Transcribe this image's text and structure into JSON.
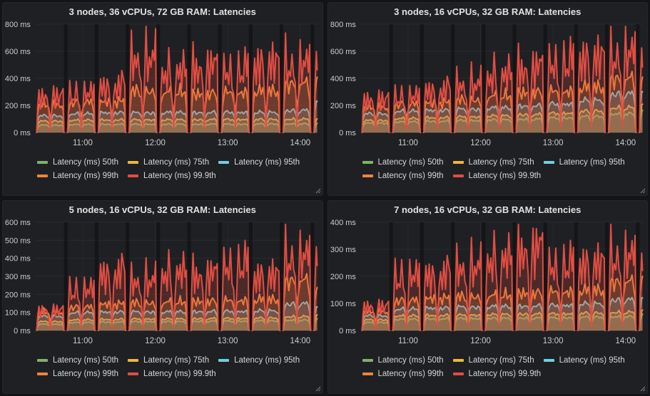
{
  "ui": {
    "panel_resize_icon": "corner-resize-grip",
    "accent_palette": [
      "#7EB26D",
      "#EAB839",
      "#6ED0E0",
      "#EF843C",
      "#E24D42"
    ],
    "panel_bg": "#1f2023",
    "page_bg": "#131417"
  },
  "burst_pattern": {
    "note": "workload runs in repeating bursts with short no-data gaps between them",
    "start": "10:22",
    "period_min": 25.5,
    "duration_min": 22.5,
    "sample_offsets": [
      0,
      0.03,
      0.08,
      0.14,
      0.2,
      0.26,
      0.32,
      0.38,
      0.44,
      0.5,
      0.56,
      0.62,
      0.68,
      0.74,
      0.8,
      0.86,
      0.92,
      0.97,
      1
    ],
    "shape_multipliers": {
      "low": [
        0,
        0.7,
        0.95,
        1,
        0.97,
        1,
        0.98,
        1,
        0.9,
        0.6,
        0.88,
        1,
        0.97,
        1,
        0.98,
        1,
        0.95,
        0.75,
        0
      ],
      "p99": [
        0,
        0.6,
        0.9,
        0.95,
        0.85,
        1,
        0.9,
        0.95,
        0.8,
        0.45,
        0.8,
        0.95,
        0.85,
        1,
        0.9,
        0.95,
        0.9,
        0.65,
        0
      ],
      "p999": [
        0,
        0.5,
        1,
        0.6,
        0.85,
        0.6,
        0.95,
        0.7,
        0.5,
        0.06,
        0.55,
        1,
        0.6,
        0.9,
        0.65,
        1,
        0.8,
        0.95,
        0
      ]
    }
  },
  "chart_data": [
    {
      "type": "area",
      "title": "3 nodes, 36 vCPUs, 72 GB RAM: Latencies",
      "ylabel_unit": "ms",
      "ylim": [
        0,
        800
      ],
      "ytick_step": 200,
      "x_range": [
        "10:21",
        "14:14"
      ],
      "xticks": [
        "11:00",
        "12:00",
        "13:00",
        "14:00"
      ],
      "series": [
        {
          "name": "Latency (ms) 50th",
          "percentile": "50th",
          "color": "#7EB26D",
          "burst_levels": [
            55,
            60,
            62,
            62,
            62,
            63,
            63,
            64,
            65,
            62
          ]
        },
        {
          "name": "Latency (ms) 75th",
          "percentile": "75th",
          "color": "#EAB839",
          "burst_levels": [
            85,
            92,
            95,
            95,
            95,
            97,
            98,
            98,
            100,
            96
          ]
        },
        {
          "name": "Latency (ms) 95th",
          "percentile": "95th",
          "color": "#6ED0E0",
          "burst_levels": [
            125,
            140,
            150,
            148,
            150,
            150,
            152,
            150,
            165,
            230
          ]
        },
        {
          "name": "Latency (ms) 99th",
          "percentile": "99th",
          "color": "#EF843C",
          "burst_levels": [
            220,
            240,
            250,
            330,
            320,
            310,
            320,
            330,
            390,
            430
          ]
        },
        {
          "name": "Latency (ms) 99.9th",
          "percentile": "99.9th",
          "color": "#E24D42",
          "burst_levels": [
            330,
            360,
            430,
            680,
            560,
            610,
            570,
            640,
            630,
            670
          ]
        }
      ]
    },
    {
      "type": "area",
      "title": "3 nodes, 16 vCPUs, 32 GB RAM: Latencies",
      "ylabel_unit": "ms",
      "ylim": [
        0,
        800
      ],
      "ytick_step": 200,
      "x_range": [
        "10:21",
        "14:14"
      ],
      "xticks": [
        "11:00",
        "12:00",
        "13:00",
        "14:00"
      ],
      "series": [
        {
          "name": "Latency (ms) 50th",
          "percentile": "50th",
          "color": "#7EB26D",
          "burst_levels": [
            70,
            80,
            85,
            90,
            95,
            100,
            110,
            120,
            140,
            150
          ]
        },
        {
          "name": "Latency (ms) 75th",
          "percentile": "75th",
          "color": "#EAB839",
          "burst_levels": [
            90,
            105,
            112,
            118,
            125,
            135,
            145,
            160,
            185,
            200
          ]
        },
        {
          "name": "Latency (ms) 95th",
          "percentile": "95th",
          "color": "#6ED0E0",
          "burst_levels": [
            140,
            160,
            168,
            175,
            185,
            200,
            215,
            240,
            290,
            300
          ]
        },
        {
          "name": "Latency (ms) 99th",
          "percentile": "99th",
          "color": "#EF843C",
          "burst_levels": [
            200,
            225,
            240,
            260,
            290,
            320,
            330,
            360,
            430,
            430
          ]
        },
        {
          "name": "Latency (ms) 99.9th",
          "percentile": "99.9th",
          "color": "#E24D42",
          "burst_levels": [
            300,
            330,
            390,
            440,
            530,
            600,
            640,
            690,
            720,
            700
          ]
        }
      ]
    },
    {
      "type": "area",
      "title": "5 nodes, 16 vCPUs, 32 GB RAM: Latencies",
      "ylabel_unit": "ms",
      "ylim": [
        0,
        600
      ],
      "ytick_step": 100,
      "x_range": [
        "10:21",
        "14:14"
      ],
      "xticks": [
        "11:00",
        "12:00",
        "13:00",
        "14:00"
      ],
      "series": [
        {
          "name": "Latency (ms) 50th",
          "percentile": "50th",
          "color": "#7EB26D",
          "burst_levels": [
            35,
            45,
            48,
            50,
            50,
            52,
            53,
            54,
            58,
            60
          ]
        },
        {
          "name": "Latency (ms) 75th",
          "percentile": "75th",
          "color": "#EAB839",
          "burst_levels": [
            50,
            60,
            63,
            65,
            65,
            67,
            68,
            70,
            78,
            82
          ]
        },
        {
          "name": "Latency (ms) 95th",
          "percentile": "95th",
          "color": "#6ED0E0",
          "burst_levels": [
            80,
            100,
            105,
            105,
            105,
            107,
            108,
            110,
            150,
            130
          ]
        },
        {
          "name": "Latency (ms) 99th",
          "percentile": "99th",
          "color": "#EF843C",
          "burst_levels": [
            110,
            140,
            160,
            165,
            170,
            175,
            180,
            185,
            300,
            250
          ]
        },
        {
          "name": "Latency (ms) 99.9th",
          "percentile": "99.9th",
          "color": "#E24D42",
          "burst_levels": [
            140,
            280,
            400,
            340,
            400,
            390,
            450,
            380,
            510,
            520
          ]
        }
      ]
    },
    {
      "type": "area",
      "title": "7 nodes, 16 vCPUs, 32 GB RAM: Latencies",
      "ylabel_unit": "ms",
      "ylim": [
        0,
        400
      ],
      "ytick_step": 100,
      "x_range": [
        "10:21",
        "14:14"
      ],
      "xticks": [
        "11:00",
        "12:00",
        "13:00",
        "14:00"
      ],
      "series": [
        {
          "name": "Latency (ms) 50th",
          "percentile": "50th",
          "color": "#7EB26D",
          "burst_levels": [
            30,
            42,
            44,
            45,
            46,
            47,
            48,
            50,
            52,
            55
          ]
        },
        {
          "name": "Latency (ms) 75th",
          "percentile": "75th",
          "color": "#EAB839",
          "burst_levels": [
            40,
            55,
            57,
            58,
            60,
            62,
            63,
            65,
            68,
            72
          ]
        },
        {
          "name": "Latency (ms) 95th",
          "percentile": "95th",
          "color": "#6ED0E0",
          "burst_levels": [
            55,
            80,
            85,
            88,
            90,
            92,
            95,
            100,
            115,
            120
          ]
        },
        {
          "name": "Latency (ms) 99th",
          "percentile": "99th",
          "color": "#EF843C",
          "burst_levels": [
            75,
            120,
            130,
            135,
            140,
            150,
            155,
            160,
            195,
            210
          ]
        },
        {
          "name": "Latency (ms) 99.9th",
          "percentile": "99.9th",
          "color": "#E24D42",
          "burst_levels": [
            110,
            250,
            260,
            290,
            330,
            380,
            300,
            310,
            340,
            320
          ]
        }
      ]
    }
  ]
}
